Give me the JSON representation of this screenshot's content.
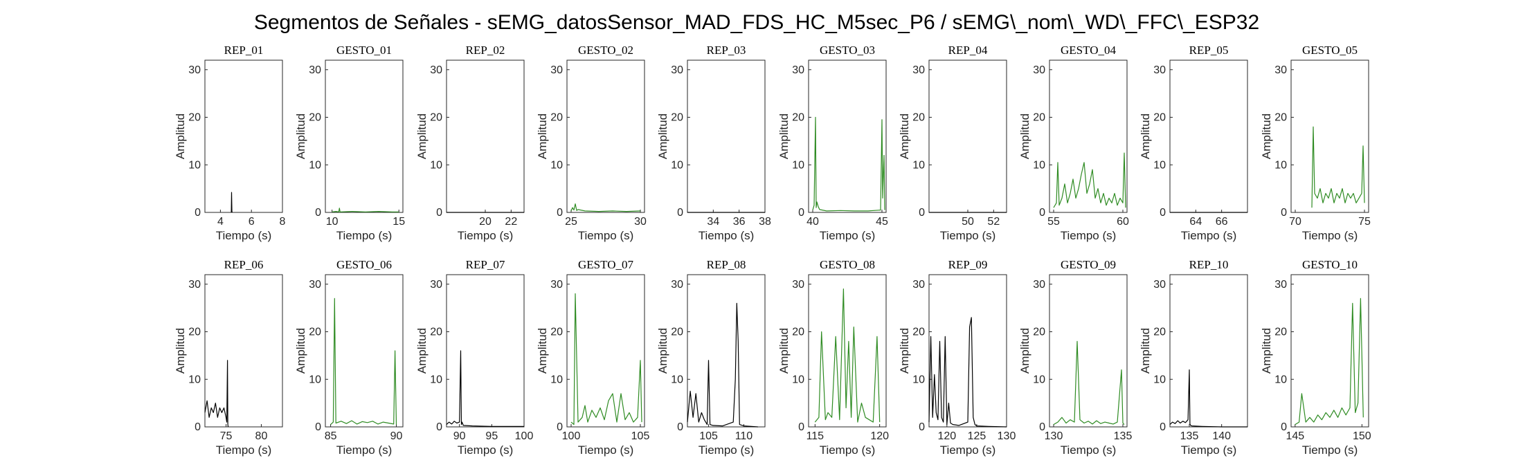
{
  "figure": {
    "title": "Segmentos de Señales - sEMG_datosSensor_MAD_FDS_HC_M5sec_P6 / sEMG\\_nom\\_WD\\_FFC\\_ESP32"
  },
  "colors": {
    "rep": "#000000",
    "gesto": "#2e8b22",
    "axis": "#262626"
  },
  "chart_data": [
    {
      "type": "line",
      "title": "REP_01",
      "xlabel": "Tiempo (s)",
      "ylabel": "Amplitud",
      "xlim": [
        3,
        8
      ],
      "ylim": [
        0,
        32
      ],
      "xticks": [
        4,
        6,
        8
      ],
      "yticks": [
        0,
        10,
        20,
        30
      ],
      "color": "#000000",
      "x": [
        4.7,
        4.72,
        4.74,
        4.76
      ],
      "y": [
        0,
        4.2,
        0.2,
        0
      ]
    },
    {
      "type": "line",
      "title": "GESTO_01",
      "xlabel": "Tiempo (s)",
      "ylabel": "Amplitud",
      "xlim": [
        9.5,
        15.3
      ],
      "ylim": [
        0,
        32
      ],
      "xticks": [
        10,
        15
      ],
      "yticks": [
        0,
        10,
        20,
        30
      ],
      "color": "#2e8b22",
      "x": [
        10.0,
        10.3,
        10.5,
        10.55,
        10.6,
        11.5,
        12.5,
        13.5,
        14.5,
        15.0
      ],
      "y": [
        0.1,
        0.2,
        0.1,
        0.9,
        0.1,
        0.2,
        0.1,
        0.2,
        0.1,
        0.1
      ]
    },
    {
      "type": "line",
      "title": "REP_02",
      "xlabel": "Tiempo (s)",
      "ylabel": "Amplitud",
      "xlim": [
        17,
        23
      ],
      "ylim": [
        0,
        32
      ],
      "xticks": [
        20,
        22
      ],
      "yticks": [
        0,
        10,
        20,
        30
      ],
      "color": "#000000",
      "x": [
        17,
        23
      ],
      "y": [
        0,
        0
      ]
    },
    {
      "type": "line",
      "title": "GESTO_02",
      "xlabel": "Tiempo (s)",
      "ylabel": "Amplitud",
      "xlim": [
        24.7,
        30.3
      ],
      "ylim": [
        0,
        32
      ],
      "xticks": [
        25,
        30
      ],
      "yticks": [
        0,
        10,
        20,
        30
      ],
      "color": "#2e8b22",
      "x": [
        25.0,
        25.1,
        25.2,
        25.3,
        25.4,
        25.5,
        26,
        27,
        28,
        29,
        30
      ],
      "y": [
        0.3,
        1.0,
        0.5,
        1.8,
        0.4,
        0.6,
        0.3,
        0.2,
        0.3,
        0.2,
        0.3
      ]
    },
    {
      "type": "line",
      "title": "REP_03",
      "xlabel": "Tiempo (s)",
      "ylabel": "Amplitud",
      "xlim": [
        32,
        38
      ],
      "ylim": [
        0,
        32
      ],
      "xticks": [
        34,
        36,
        38
      ],
      "yticks": [
        0,
        10,
        20,
        30
      ],
      "color": "#000000",
      "x": [
        32,
        38
      ],
      "y": [
        0,
        0
      ]
    },
    {
      "type": "line",
      "title": "GESTO_03",
      "xlabel": "Tiempo (s)",
      "ylabel": "Amplitud",
      "xlim": [
        39.7,
        45.3
      ],
      "ylim": [
        0,
        32
      ],
      "xticks": [
        40,
        45
      ],
      "yticks": [
        0,
        10,
        20,
        30
      ],
      "color": "#2e8b22",
      "x": [
        40.0,
        40.1,
        40.2,
        40.25,
        40.3,
        40.4,
        40.5,
        41,
        42,
        43,
        44,
        44.9,
        45.0,
        45.05,
        45.1,
        45.15,
        45.2
      ],
      "y": [
        0.5,
        1.5,
        20,
        1.0,
        2.2,
        1.2,
        0.6,
        0.3,
        0.4,
        0.3,
        0.3,
        0.5,
        19.5,
        3,
        8,
        12,
        0.5
      ]
    },
    {
      "type": "line",
      "title": "REP_04",
      "xlabel": "Tiempo (s)",
      "ylabel": "Amplitud",
      "xlim": [
        47,
        53
      ],
      "ylim": [
        0,
        32
      ],
      "xticks": [
        50,
        52
      ],
      "yticks": [
        0,
        10,
        20,
        30
      ],
      "color": "#000000",
      "x": [
        47,
        53
      ],
      "y": [
        0,
        0
      ]
    },
    {
      "type": "line",
      "title": "GESTO_04",
      "xlabel": "Tiempo (s)",
      "ylabel": "Amplitud",
      "xlim": [
        54.7,
        60.3
      ],
      "ylim": [
        0,
        32
      ],
      "xticks": [
        55,
        60
      ],
      "yticks": [
        0,
        10,
        20,
        30
      ],
      "color": "#2e8b22",
      "x": [
        55.0,
        55.2,
        55.3,
        55.4,
        55.6,
        55.8,
        56.0,
        56.2,
        56.4,
        56.6,
        56.8,
        57.0,
        57.2,
        57.4,
        57.6,
        57.8,
        58.0,
        58.2,
        58.4,
        58.6,
        58.8,
        59.0,
        59.2,
        59.4,
        59.6,
        59.8,
        60.0,
        60.1,
        60.2
      ],
      "y": [
        1,
        2,
        10.5,
        1.5,
        3,
        6,
        2,
        4,
        7,
        3,
        5,
        8,
        10.5,
        4,
        6,
        9,
        3,
        5,
        2,
        4,
        1.5,
        3,
        2,
        4,
        1.5,
        3,
        2,
        12.5,
        1
      ]
    },
    {
      "type": "line",
      "title": "REP_05",
      "xlabel": "Tiempo (s)",
      "ylabel": "Amplitud",
      "xlim": [
        62,
        68
      ],
      "ylim": [
        0,
        32
      ],
      "xticks": [
        64,
        66
      ],
      "yticks": [
        0,
        10,
        20,
        30
      ],
      "color": "#000000",
      "x": [
        62,
        68
      ],
      "y": [
        0,
        0
      ]
    },
    {
      "type": "line",
      "title": "GESTO_05",
      "xlabel": "Tiempo (s)",
      "ylabel": "Amplitud",
      "xlim": [
        69.7,
        75.3
      ],
      "ylim": [
        0,
        32
      ],
      "xticks": [
        70,
        75
      ],
      "yticks": [
        0,
        10,
        20,
        30
      ],
      "color": "#2e8b22",
      "x": [
        71.2,
        71.3,
        71.4,
        71.6,
        71.8,
        72.0,
        72.2,
        72.4,
        72.6,
        72.8,
        73.0,
        73.2,
        73.4,
        73.6,
        73.8,
        74.0,
        74.2,
        74.4,
        74.6,
        74.8,
        74.9,
        75.0
      ],
      "y": [
        1,
        18,
        4,
        3,
        5,
        2,
        4,
        3,
        5,
        2,
        4,
        3,
        5,
        2,
        4,
        3,
        4,
        2,
        3,
        4,
        14,
        2
      ]
    },
    {
      "type": "line",
      "title": "REP_06",
      "xlabel": "Tiempo (s)",
      "ylabel": "Amplitud",
      "xlim": [
        72,
        83
      ],
      "ylim": [
        0,
        32
      ],
      "xticks": [
        75,
        80
      ],
      "yticks": [
        0,
        10,
        20,
        30
      ],
      "color": "#000000",
      "x": [
        72.0,
        72.3,
        72.6,
        72.9,
        73.2,
        73.5,
        73.8,
        74.1,
        74.4,
        74.7,
        75.0,
        75.1,
        75.2,
        75.25,
        75.3
      ],
      "y": [
        3,
        5.5,
        2,
        4,
        3,
        5,
        2,
        4,
        3,
        4,
        2,
        1,
        14,
        0.5,
        0
      ]
    },
    {
      "type": "line",
      "title": "GESTO_06",
      "xlabel": "Tiempo (s)",
      "ylabel": "Amplitud",
      "xlim": [
        84.6,
        90.5
      ],
      "ylim": [
        0,
        32
      ],
      "xticks": [
        85,
        90
      ],
      "yticks": [
        0,
        10,
        20,
        30
      ],
      "color": "#2e8b22",
      "x": [
        85.0,
        85.2,
        85.3,
        85.4,
        85.8,
        86.2,
        86.6,
        87.0,
        87.4,
        87.8,
        88.2,
        88.6,
        89.0,
        89.4,
        89.8,
        89.9,
        90.0
      ],
      "y": [
        0.5,
        1,
        27,
        0.8,
        1.2,
        0.7,
        1.3,
        0.6,
        1.1,
        0.9,
        1.2,
        0.6,
        1,
        0.8,
        0.6,
        16,
        0.5
      ]
    },
    {
      "type": "line",
      "title": "REP_07",
      "xlabel": "Tiempo (s)",
      "ylabel": "Amplitud",
      "xlim": [
        88,
        100
      ],
      "ylim": [
        0,
        32
      ],
      "xticks": [
        90,
        95,
        100
      ],
      "yticks": [
        0,
        10,
        20,
        30
      ],
      "color": "#000000",
      "x": [
        88.0,
        88.4,
        88.8,
        89.2,
        89.6,
        90.0,
        90.2,
        90.3,
        90.4,
        90.6,
        92,
        95,
        100
      ],
      "y": [
        0.5,
        1,
        0.6,
        1.2,
        0.8,
        1,
        16,
        0.5,
        1,
        0.3,
        0.2,
        0.1,
        0.1
      ]
    },
    {
      "type": "line",
      "title": "GESTO_07",
      "xlabel": "Tiempo (s)",
      "ylabel": "Amplitud",
      "xlim": [
        99.7,
        105.3
      ],
      "ylim": [
        0,
        32
      ],
      "xticks": [
        100,
        105
      ],
      "yticks": [
        0,
        10,
        20,
        30
      ],
      "color": "#2e8b22",
      "x": [
        100.0,
        100.2,
        100.3,
        100.5,
        100.8,
        101.0,
        101.2,
        101.5,
        101.8,
        102.1,
        102.4,
        102.7,
        103.0,
        103.3,
        103.6,
        103.9,
        104.2,
        104.5,
        104.8,
        105.0,
        105.1
      ],
      "y": [
        1,
        0.5,
        28,
        1,
        2,
        4.5,
        1,
        3.5,
        2,
        4,
        1.5,
        5.5,
        7,
        1,
        7,
        1.5,
        3,
        1,
        2,
        14,
        1
      ]
    },
    {
      "type": "line",
      "title": "REP_08",
      "xlabel": "Tiempo (s)",
      "ylabel": "Amplitud",
      "xlim": [
        102,
        113
      ],
      "ylim": [
        0,
        32
      ],
      "xticks": [
        105,
        110
      ],
      "yticks": [
        0,
        10,
        20,
        30
      ],
      "color": "#000000",
      "x": [
        102.0,
        102.4,
        102.8,
        103.2,
        103.6,
        104.0,
        104.4,
        104.8,
        105.0,
        105.2,
        105.6,
        107,
        108.5,
        108.8,
        109.0,
        109.2,
        109.4,
        110,
        112
      ],
      "y": [
        1,
        7.5,
        2,
        7,
        1,
        3,
        1.5,
        0.5,
        14,
        0.5,
        0.3,
        0.2,
        1,
        10,
        26,
        18,
        0.5,
        0.2,
        0
      ]
    },
    {
      "type": "line",
      "title": "GESTO_08",
      "xlabel": "Tiempo (s)",
      "ylabel": "Amplitud",
      "xlim": [
        114.5,
        120.5
      ],
      "ylim": [
        0,
        32
      ],
      "xticks": [
        115,
        120
      ],
      "yticks": [
        0,
        10,
        20,
        30
      ],
      "color": "#2e8b22",
      "x": [
        115.0,
        115.3,
        115.5,
        115.8,
        116.0,
        116.3,
        116.6,
        116.9,
        117.2,
        117.4,
        117.6,
        117.8,
        118.0,
        118.3,
        118.6,
        118.9,
        119.2,
        119.5,
        119.8,
        120.0
      ],
      "y": [
        1,
        2,
        20,
        1.5,
        3,
        2,
        19,
        1.5,
        29,
        4,
        18,
        2,
        21,
        1,
        5,
        2,
        1.5,
        1,
        19,
        1
      ]
    },
    {
      "type": "line",
      "title": "REP_09",
      "xlabel": "Tiempo (s)",
      "ylabel": "Amplitud",
      "xlim": [
        117,
        130
      ],
      "ylim": [
        0,
        32
      ],
      "xticks": [
        120,
        125,
        130
      ],
      "yticks": [
        0,
        10,
        20,
        30
      ],
      "color": "#000000",
      "x": [
        117.0,
        117.3,
        117.6,
        117.9,
        118.2,
        118.5,
        118.8,
        119.1,
        119.4,
        119.7,
        120.0,
        120.3,
        120.6,
        121,
        122,
        123.5,
        123.8,
        124.1,
        124.4,
        124.7,
        125,
        127,
        130
      ],
      "y": [
        1,
        19,
        2,
        11,
        3,
        1.5,
        18,
        2,
        1,
        19,
        0.5,
        5,
        0.8,
        0.5,
        0.3,
        1,
        21,
        23,
        2,
        0.5,
        0.2,
        0.1,
        0
      ]
    },
    {
      "type": "line",
      "title": "GESTO_09",
      "xlabel": "Tiempo (s)",
      "ylabel": "Amplitud",
      "xlim": [
        129.7,
        135.3
      ],
      "ylim": [
        0,
        32
      ],
      "xticks": [
        130,
        135
      ],
      "yticks": [
        0,
        10,
        20,
        30
      ],
      "color": "#2e8b22",
      "x": [
        130.0,
        130.3,
        130.6,
        130.9,
        131.2,
        131.5,
        131.7,
        131.9,
        132.2,
        132.5,
        132.8,
        133.1,
        133.4,
        133.7,
        134.0,
        134.3,
        134.6,
        134.9,
        135.0,
        135.1
      ],
      "y": [
        0.5,
        1,
        2,
        0.8,
        1.5,
        1,
        18,
        1.5,
        0.8,
        1.2,
        0.6,
        1.3,
        0.7,
        1,
        0.8,
        0.6,
        1,
        12,
        0.8,
        0.5
      ]
    },
    {
      "type": "line",
      "title": "REP_10",
      "xlabel": "Tiempo (s)",
      "ylabel": "Amplitud",
      "xlim": [
        132,
        144
      ],
      "ylim": [
        0,
        32
      ],
      "xticks": [
        135,
        140
      ],
      "yticks": [
        0,
        10,
        20,
        30
      ],
      "color": "#000000",
      "x": [
        132.0,
        132.4,
        132.8,
        133.2,
        133.6,
        134.0,
        134.4,
        134.8,
        135.0,
        135.1,
        135.2,
        135.4,
        137,
        140,
        144
      ],
      "y": [
        0.5,
        1,
        0.7,
        1.3,
        0.8,
        1.2,
        0.9,
        1.5,
        12,
        0.6,
        0.3,
        0.2,
        0.1,
        0,
        0
      ]
    },
    {
      "type": "line",
      "title": "GESTO_10",
      "xlabel": "Tiempo (s)",
      "ylabel": "Amplitud",
      "xlim": [
        144.7,
        150.5
      ],
      "ylim": [
        0,
        32
      ],
      "xticks": [
        145,
        150
      ],
      "yticks": [
        0,
        10,
        20,
        30
      ],
      "color": "#2e8b22",
      "x": [
        145.0,
        145.3,
        145.5,
        145.8,
        146.1,
        146.4,
        146.7,
        147.0,
        147.3,
        147.6,
        147.9,
        148.2,
        148.5,
        148.8,
        149.1,
        149.3,
        149.5,
        149.7,
        149.9,
        150.1
      ],
      "y": [
        0.5,
        1,
        7,
        1,
        2,
        1,
        2.5,
        1.5,
        3,
        2,
        3.5,
        2,
        4,
        2.5,
        4,
        26,
        3,
        5,
        27,
        2
      ]
    }
  ]
}
